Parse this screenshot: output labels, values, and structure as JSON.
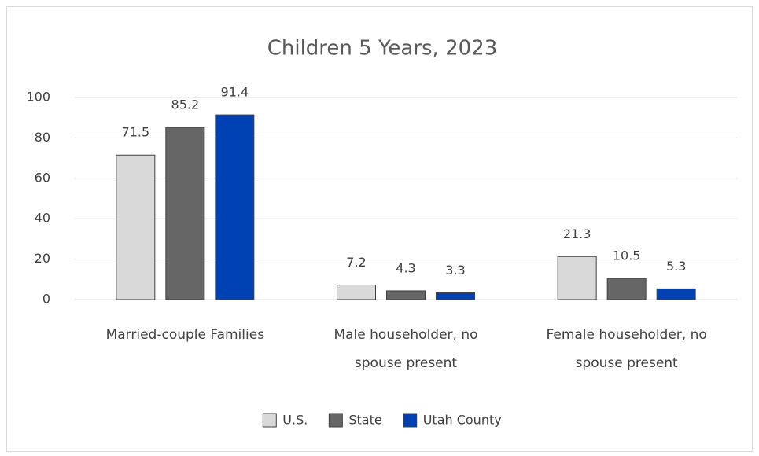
{
  "chart_data": {
    "type": "bar",
    "title": "Children 5 Years, 2023",
    "categories": [
      "Married-couple Families",
      "Male householder, no spouse present",
      "Female householder, no spouse present"
    ],
    "series": [
      {
        "name": "U.S.",
        "color": "#d9d9d9",
        "values": [
          71.5,
          7.2,
          21.3
        ]
      },
      {
        "name": "State",
        "color": "#666666",
        "values": [
          85.2,
          4.3,
          10.5
        ]
      },
      {
        "name": "Utah County",
        "color": "#0041b4",
        "values": [
          91.4,
          3.3,
          5.3
        ]
      }
    ],
    "ylim": [
      0,
      100
    ],
    "yticks": [
      0,
      20,
      40,
      60,
      80,
      100
    ],
    "grid": true,
    "legend": "bottom"
  }
}
